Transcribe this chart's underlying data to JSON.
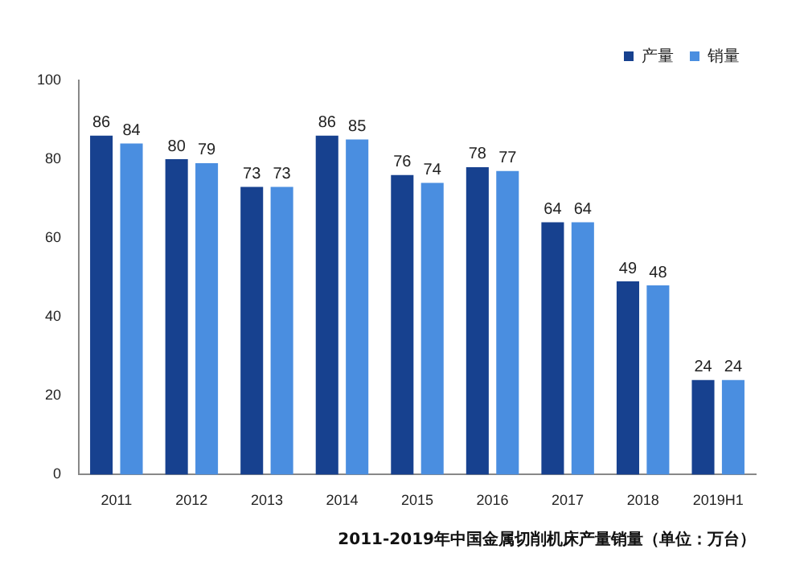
{
  "chart_data": {
    "type": "bar",
    "title": "2011-2019年中国金属切削机床产量销量（单位：万台）",
    "categories": [
      "2011",
      "2012",
      "2013",
      "2014",
      "2015",
      "2016",
      "2017",
      "2018",
      "2019H1"
    ],
    "series": [
      {
        "name": "产量",
        "color": "#17418f",
        "values": [
          86,
          80,
          73,
          86,
          76,
          78,
          64,
          49,
          24
        ]
      },
      {
        "name": "销量",
        "color": "#4a8ee0",
        "values": [
          84,
          79,
          73,
          85,
          74,
          77,
          64,
          48,
          24
        ]
      }
    ],
    "ylim": [
      0,
      100
    ],
    "yticks": [
      0,
      20,
      40,
      60,
      80,
      100
    ],
    "grid": false,
    "legend": "top right",
    "data_labels": true
  }
}
